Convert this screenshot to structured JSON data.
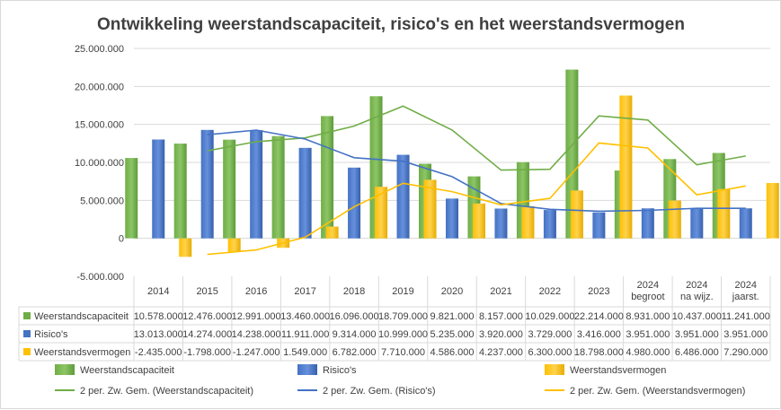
{
  "chart_data": {
    "type": "bar",
    "title": "Ontwikkeling  weerstandscapaciteit,  risico's  en het weerstandsvermogen",
    "categories": [
      [
        "2014"
      ],
      [
        "2015"
      ],
      [
        "2016"
      ],
      [
        "2017"
      ],
      [
        "2018"
      ],
      [
        "2019"
      ],
      [
        "2020"
      ],
      [
        "2021"
      ],
      [
        "2022"
      ],
      [
        "2023"
      ],
      [
        "2024",
        "begroot"
      ],
      [
        "2024",
        "na wijz."
      ],
      [
        "2024",
        "jaarst."
      ]
    ],
    "ylim": [
      -5000000,
      25000000
    ],
    "y_ticks": [
      -5000000,
      0,
      5000000,
      10000000,
      15000000,
      20000000,
      25000000
    ],
    "y_tick_labels": [
      "-5.000.000",
      "0",
      "5.000.000",
      "10.000.000",
      "15.000.000",
      "20.000.000",
      "25.000.000"
    ],
    "grid": true,
    "legend_position": "bottom",
    "data_table": true,
    "series": [
      {
        "name": "Weerstandscapaciteit",
        "color": "#70ad47",
        "values": [
          10578000,
          12476000,
          12991000,
          13460000,
          16096000,
          18709000,
          9821000,
          8157000,
          10029000,
          22214000,
          8931000,
          10437000,
          11241000
        ],
        "labels": [
          "10.578.000",
          "12.476.000",
          "12.991.000",
          "13.460.000",
          "16.096.000",
          "18.709.000",
          "9.821.000",
          "8.157.000",
          "10.029.000",
          "22.214.000",
          "8.931.000",
          "10.437.000",
          "11.241.000"
        ]
      },
      {
        "name": "Risico's",
        "color": "#4472c4",
        "values": [
          13013000,
          14274000,
          14238000,
          11911000,
          9314000,
          10999000,
          5235000,
          3920000,
          3729000,
          3416000,
          3951000,
          3951000,
          3951000
        ],
        "labels": [
          "13.013.000",
          "14.274.000",
          "14.238.000",
          "11.911.000",
          "9.314.000",
          "10.999.000",
          "5.235.000",
          "3.920.000",
          "3.729.000",
          "3.416.000",
          "3.951.000",
          "3.951.000",
          "3.951.000"
        ]
      },
      {
        "name": "Weerstandsvermogen",
        "color": "#ffc000",
        "values": [
          -2435000,
          -1798000,
          -1247000,
          1549000,
          6782000,
          7710000,
          4586000,
          4237000,
          6300000,
          18798000,
          4980000,
          6486000,
          7290000
        ],
        "labels": [
          "-2.435.000",
          "-1.798.000",
          "-1.247.000",
          "1.549.000",
          "6.782.000",
          "7.710.000",
          "4.586.000",
          "4.237.000",
          "6.300.000",
          "18.798.000",
          "4.980.000",
          "6.486.000",
          "7.290.000"
        ]
      }
    ],
    "trendlines": [
      {
        "name": "2 per. Zw. Gem. (Weerstandscapaciteit)",
        "type": "moving_average",
        "period": 2,
        "color": "#70ad47"
      },
      {
        "name": "2 per. Zw. Gem. (Risico's)",
        "type": "moving_average",
        "period": 2,
        "color": "#4472c4"
      },
      {
        "name": "2 per. Zw. Gem. (Weerstandsvermogen)",
        "type": "moving_average",
        "period": 2,
        "color": "#ffc000"
      }
    ]
  }
}
